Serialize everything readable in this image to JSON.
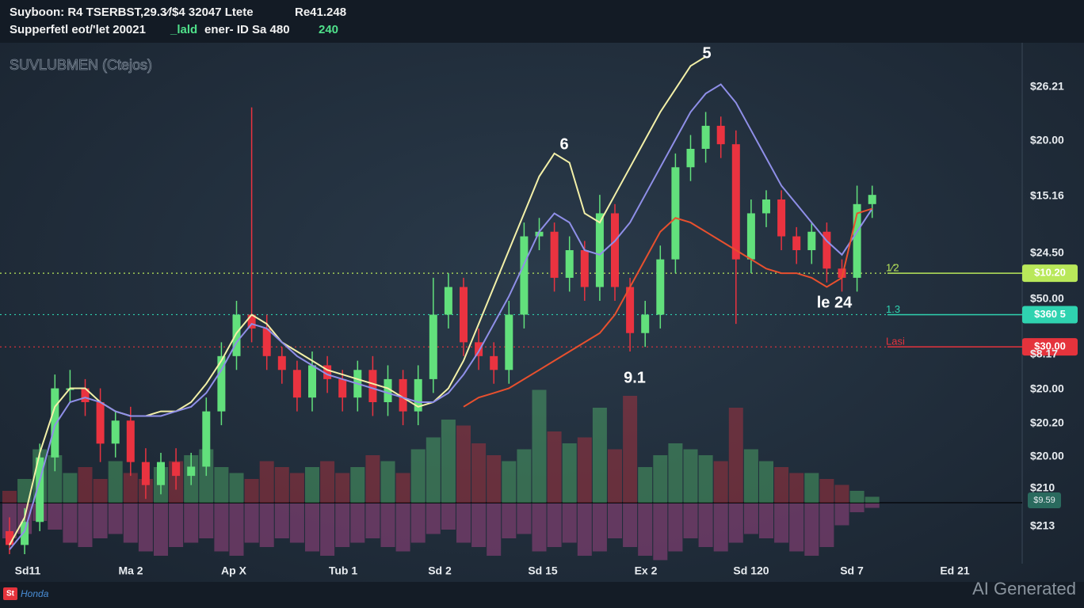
{
  "header": {
    "line1": [
      "Suyboon: R4 TSERBST,29.3⁄/$4 32047 Ltete",
      "Re41.248"
    ],
    "line2": [
      "Supperfetl eot/'let 20021",
      "_lald",
      "ener- ID Sa 480",
      "240"
    ]
  },
  "watermark": "SUVLUBMEN (Ctejos)",
  "chart_data": {
    "type": "candlestick",
    "ylim": [
      0,
      110
    ],
    "candles": {
      "up_color": "#62e07c",
      "down_color": "#ea3340",
      "open": [
        5,
        2,
        7,
        21,
        36,
        36,
        33,
        24,
        29,
        20,
        15,
        20,
        17,
        19,
        31,
        43,
        52,
        49,
        43,
        40,
        34,
        41,
        38,
        34,
        40,
        33,
        38,
        31,
        38,
        52,
        58,
        46,
        43,
        40,
        52,
        69,
        70,
        60,
        66,
        58,
        74,
        58,
        48,
        52,
        64,
        84,
        88,
        93,
        89,
        64,
        74,
        77,
        69,
        66,
        70,
        62,
        60,
        76
      ],
      "high": [
        8,
        10,
        24,
        39,
        40,
        38,
        36,
        31,
        32,
        23,
        22,
        23,
        22,
        34,
        46,
        55,
        97,
        52,
        45,
        42,
        44,
        43,
        40,
        42,
        43,
        41,
        40,
        41,
        60,
        61,
        60,
        49,
        46,
        55,
        72,
        73,
        72,
        69,
        68,
        78,
        76,
        60,
        55,
        67,
        87,
        91,
        96,
        95,
        92,
        77,
        79,
        79,
        71,
        72,
        72,
        64,
        80,
        80
      ],
      "low": [
        0,
        0,
        5,
        18,
        33,
        30,
        20,
        21,
        17,
        12,
        13,
        14,
        15,
        17,
        28,
        40,
        46,
        40,
        37,
        31,
        31,
        35,
        31,
        31,
        30,
        30,
        28,
        28,
        35,
        49,
        43,
        40,
        37,
        37,
        49,
        66,
        57,
        57,
        55,
        55,
        55,
        44,
        45,
        49,
        61,
        81,
        85,
        86,
        50,
        61,
        71,
        66,
        63,
        63,
        59,
        57,
        57,
        73
      ],
      "close": [
        2,
        7,
        21,
        36,
        36,
        33,
        24,
        29,
        20,
        15,
        20,
        17,
        19,
        31,
        43,
        52,
        49,
        43,
        40,
        34,
        41,
        38,
        34,
        40,
        33,
        38,
        31,
        38,
        52,
        58,
        46,
        43,
        40,
        52,
        69,
        70,
        60,
        66,
        58,
        74,
        58,
        48,
        52,
        64,
        84,
        88,
        93,
        89,
        64,
        74,
        77,
        69,
        66,
        70,
        62,
        60,
        76,
        78
      ]
    },
    "volume": {
      "values": [
        10,
        20,
        45,
        40,
        25,
        30,
        20,
        35,
        25,
        20,
        30,
        35,
        40,
        45,
        30,
        25,
        20,
        35,
        30,
        25,
        30,
        35,
        25,
        30,
        40,
        35,
        25,
        45,
        55,
        70,
        65,
        50,
        40,
        35,
        45,
        95,
        60,
        50,
        55,
        80,
        45,
        90,
        30,
        40,
        50,
        45,
        40,
        35,
        80,
        45,
        35,
        30,
        25,
        25,
        20,
        15,
        10,
        5
      ]
    },
    "oscillator": {
      "color": "#7a3e6e",
      "values": [
        -40,
        -35,
        -20,
        -30,
        -45,
        -50,
        -40,
        -35,
        -45,
        -55,
        -60,
        -50,
        -45,
        -40,
        -55,
        -60,
        -45,
        -50,
        -40,
        -45,
        -55,
        -60,
        -50,
        -45,
        -40,
        -50,
        -55,
        -45,
        -35,
        -30,
        -45,
        -50,
        -60,
        -40,
        -35,
        -55,
        -50,
        -45,
        -60,
        -55,
        -40,
        -50,
        -60,
        -65,
        -55,
        -40,
        -50,
        -55,
        -45,
        -35,
        -40,
        -45,
        -55,
        -60,
        -50,
        -25,
        -10,
        -5
      ]
    },
    "lines": [
      {
        "color": "#f3f0a8",
        "values": [
          2,
          8,
          22,
          32,
          36,
          36,
          33,
          31,
          30,
          30,
          31,
          31,
          33,
          37,
          42,
          48,
          52,
          50,
          46,
          44,
          42,
          40,
          39,
          38,
          37,
          36,
          34,
          32,
          33,
          36,
          42,
          50,
          58,
          66,
          74,
          82,
          87,
          85,
          74,
          72,
          78,
          84,
          90,
          96,
          101,
          106,
          108,
          null,
          null,
          null,
          null,
          null,
          null,
          null,
          null,
          null,
          null,
          null
        ]
      },
      {
        "color": "#8f8fe8",
        "values": [
          1,
          5,
          16,
          28,
          33,
          34,
          33,
          31,
          30,
          30,
          30,
          31,
          32,
          35,
          40,
          46,
          50,
          49,
          46,
          43,
          41,
          39,
          38,
          37,
          36,
          35,
          34,
          33,
          33,
          35,
          39,
          44,
          50,
          56,
          63,
          70,
          74,
          72,
          66,
          65,
          68,
          72,
          78,
          84,
          90,
          96,
          100,
          102,
          98,
          92,
          86,
          80,
          76,
          72,
          68,
          65,
          70,
          75
        ]
      },
      {
        "color": "#e8502e",
        "values": [
          null,
          null,
          null,
          null,
          null,
          null,
          null,
          null,
          null,
          null,
          null,
          null,
          null,
          null,
          null,
          null,
          null,
          null,
          null,
          null,
          null,
          null,
          null,
          null,
          null,
          null,
          null,
          null,
          null,
          null,
          32,
          34,
          35,
          36,
          38,
          40,
          42,
          44,
          46,
          48,
          52,
          58,
          64,
          70,
          73,
          72,
          70,
          68,
          66,
          64,
          62,
          61,
          61,
          60,
          58,
          60,
          74,
          75
        ]
      }
    ],
    "levels": [
      {
        "value": 61,
        "color": "#b9e85a",
        "tag": "$10.20",
        "marker": "1⁄2"
      },
      {
        "value": 52,
        "color": "#2fd3b0",
        "tag": "$360 5",
        "marker": "1.3"
      },
      {
        "value": 45,
        "color": "#e5333c",
        "tag": "$30.00",
        "marker": "Lasi"
      }
    ],
    "annotations": [
      "5",
      "6",
      "9.1",
      "le 24"
    ],
    "y_labels": [
      "$26.21",
      "$20.00",
      "$15.16",
      "$24.50",
      "$50.00",
      "$8.17",
      "$20.00",
      "$20.20",
      "$20.00",
      "$210",
      "$213"
    ],
    "y_tag": "$9.59",
    "x_labels": [
      "Sd11",
      "Ma 2",
      "Ap X",
      "Tub 1",
      "Sd 2",
      "Sd 15",
      "Ex 2",
      "Sd 120",
      "Sd 7",
      "Ed 21"
    ]
  },
  "footer": {
    "logo_badge": "St",
    "logo": "Honda",
    "watermark": "AI Generated"
  }
}
